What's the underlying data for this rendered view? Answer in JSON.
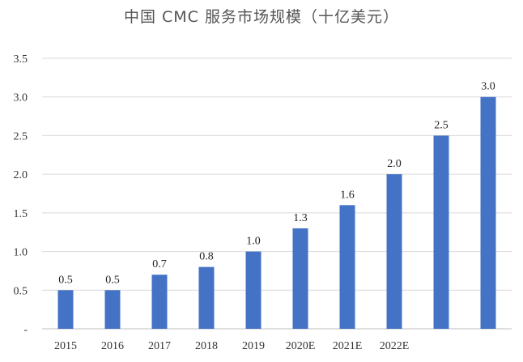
{
  "chart_data": {
    "type": "bar",
    "title": "中国 CMC 服务市场规模（十亿美元）",
    "categories": [
      "2015",
      "2016",
      "2017",
      "2018",
      "2019",
      "2020E",
      "2021E",
      "2022E",
      "",
      ""
    ],
    "values": [
      0.5,
      0.5,
      0.7,
      0.8,
      1.0,
      1.3,
      1.6,
      2.0,
      2.5,
      3.0
    ],
    "data_labels": [
      "0.5",
      "0.5",
      "0.7",
      "0.8",
      "1.0",
      "1.3",
      "1.6",
      "2.0",
      "2.5",
      "3.0"
    ],
    "yticks": [
      "-",
      "0.5",
      "1.0",
      "1.5",
      "2.0",
      "2.5",
      "3.0",
      "3.5"
    ],
    "ylim": [
      0,
      3.5
    ],
    "xlabel": "",
    "ylabel": "",
    "grid": true,
    "legend": "none",
    "colors": {
      "bar": "#4472c4"
    }
  }
}
